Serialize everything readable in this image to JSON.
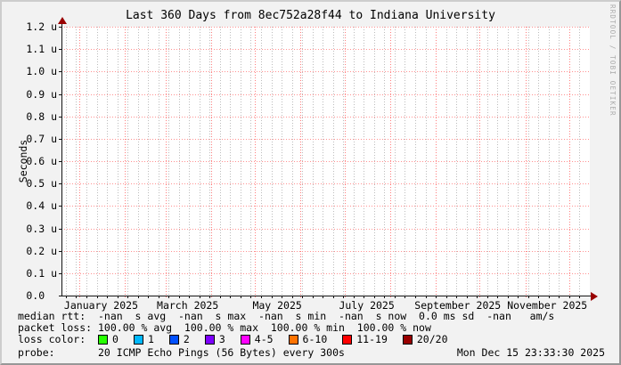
{
  "watermark": "RRDTOOL / TOBI OETIKER",
  "chart_data": {
    "type": "line",
    "title": "Last 360 Days from 8ec752a28f44 to Indiana University",
    "ylabel": "Seconds",
    "y_unit": "u (microseconds)",
    "ylim_microseconds": [
      0.0,
      1.2
    ],
    "y_ticks": [
      {
        "value": 0.0,
        "label": "0.0"
      },
      {
        "value": 0.1,
        "label": "0.1 u"
      },
      {
        "value": 0.2,
        "label": "0.2 u"
      },
      {
        "value": 0.3,
        "label": "0.3 u"
      },
      {
        "value": 0.4,
        "label": "0.4 u"
      },
      {
        "value": 0.5,
        "label": "0.5 u"
      },
      {
        "value": 0.6,
        "label": "0.6 u"
      },
      {
        "value": 0.7,
        "label": "0.7 u"
      },
      {
        "value": 0.8,
        "label": "0.8 u"
      },
      {
        "value": 0.9,
        "label": "0.9 u"
      },
      {
        "value": 1.0,
        "label": "1.0 u"
      },
      {
        "value": 1.1,
        "label": "1.1 u"
      },
      {
        "value": 1.2,
        "label": "1.2 u"
      }
    ],
    "x_range_days": 360,
    "x_ticks": [
      {
        "day": 27,
        "label": "January 2025"
      },
      {
        "day": 86,
        "label": "March 2025"
      },
      {
        "day": 147,
        "label": "May 2025"
      },
      {
        "day": 208,
        "label": "July 2025"
      },
      {
        "day": 270,
        "label": "September 2025"
      },
      {
        "day": 331,
        "label": "November 2025"
      }
    ],
    "month_gridline_days": [
      12,
      43,
      71,
      102,
      132,
      163,
      193,
      224,
      255,
      285,
      316,
      346
    ],
    "minor_gridline_every_days": 7,
    "minor_gridline_phase_days": 3,
    "grid": true,
    "series": [],
    "no_data": true,
    "colors": {
      "background": "#f2f2f2",
      "canvas": "#ffffff",
      "axis": "#161616",
      "arrow": "#990000",
      "major_grid": "#ff9090",
      "month_grid": "#ff7d7d",
      "minor_grid": "#bcbcbc"
    }
  },
  "legend": {
    "median_rtt": "median rtt:  -nan  s avg  -nan  s max  -nan  s min  -nan  s now  0.0 ms sd  -nan   am/s",
    "packet_loss": "packet loss: 100.00 % avg  100.00 % max  100.00 % min  100.00 % now",
    "loss_color_label": "loss color:  ",
    "loss_colors": [
      {
        "label": "0",
        "color": "#26ff00"
      },
      {
        "label": "1",
        "color": "#00b8ff"
      },
      {
        "label": "2",
        "color": "#0050ff"
      },
      {
        "label": "3",
        "color": "#7d00ff"
      },
      {
        "label": "4-5",
        "color": "#ff00ff"
      },
      {
        "label": "6-10",
        "color": "#ff7300"
      },
      {
        "label": "11-19",
        "color": "#ff0000"
      },
      {
        "label": "20/20",
        "color": "#990000"
      }
    ],
    "probe": "probe:       20 ICMP Echo Pings (56 Bytes) every 300s",
    "timestamp": "Mon Dec 15 23:33:30 2025"
  }
}
